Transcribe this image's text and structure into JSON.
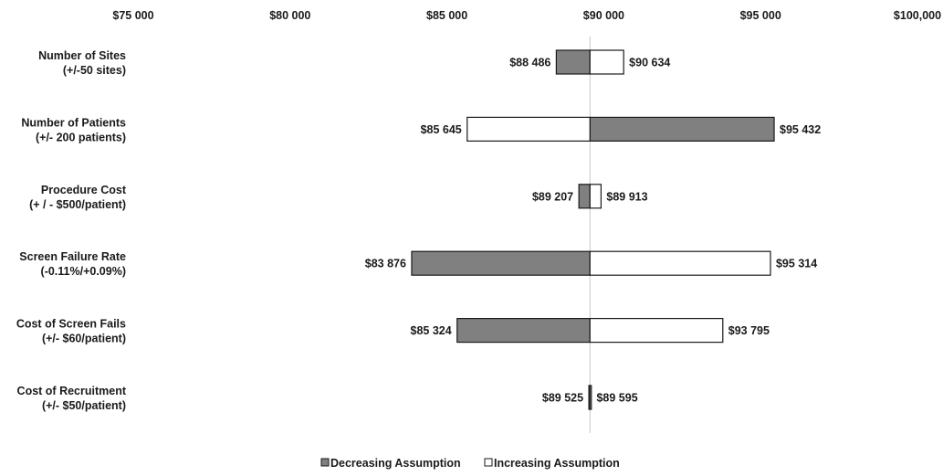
{
  "chart_data": {
    "type": "bar",
    "subtype": "tornado",
    "baseline": 89560,
    "xlim": [
      75000,
      100000
    ],
    "x_ticks": [
      {
        "value": 75000,
        "label": "$75 000"
      },
      {
        "value": 80000,
        "label": "$80 000"
      },
      {
        "value": 85000,
        "label": "$85 000"
      },
      {
        "value": 90000,
        "label": "$90 000"
      },
      {
        "value": 95000,
        "label": "$95 000"
      },
      {
        "value": 100000,
        "label": "$100,000"
      }
    ],
    "categories": [
      {
        "name": "Number of Sites",
        "range": "(+/-50 sites)"
      },
      {
        "name": "Number of Patients",
        "range": "(+/- 200 patients)"
      },
      {
        "name": "Procedure Cost",
        "range": "(+ / - $500/patient)"
      },
      {
        "name": "Screen Failure Rate",
        "range": "(-0.11%/+0.09%)"
      },
      {
        "name": "Cost of Screen Fails",
        "range": "(+/- $60/patient)"
      },
      {
        "name": "Cost of Recruitment",
        "range": "(+/- $50/patient)"
      }
    ],
    "series": [
      {
        "name": "Decreasing Assumption",
        "color": "#808080",
        "values": [
          88486,
          95432,
          89207,
          83876,
          85324,
          89525
        ],
        "labels": [
          "$88 486",
          "$95 432",
          "$89 207",
          "$83 876",
          "$85 324",
          "$89 525"
        ]
      },
      {
        "name": "Increasing Assumption",
        "color": "#ffffff",
        "values": [
          90634,
          85645,
          89913,
          95314,
          93795,
          89595
        ],
        "labels": [
          "$90 634",
          "$85 645",
          "$89 913",
          "$95 314",
          "$93 795",
          "$89 595"
        ]
      }
    ],
    "legend_position": "bottom",
    "grid": false
  }
}
